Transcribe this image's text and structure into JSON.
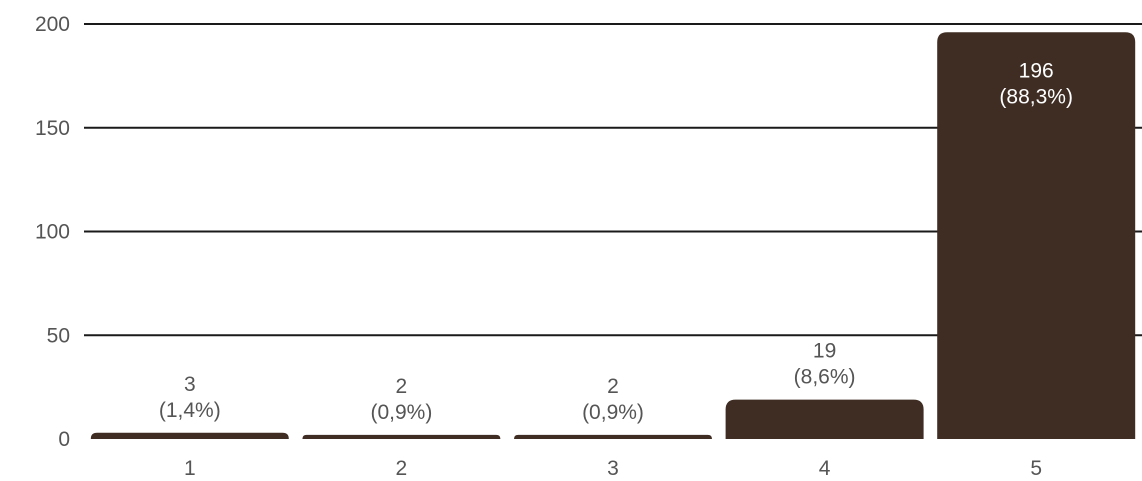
{
  "chart_data": {
    "type": "bar",
    "categories": [
      "1",
      "2",
      "3",
      "4",
      "5"
    ],
    "values": [
      3,
      2,
      2,
      19,
      196
    ],
    "data_labels": [
      [
        "3",
        "(1,4%)"
      ],
      [
        "2",
        "(0,9%)"
      ],
      [
        "2",
        "(0,9%)"
      ],
      [
        "19",
        "(8,6%)"
      ],
      [
        "196",
        "(88,3%)"
      ]
    ],
    "y_ticks": [
      "0",
      "50",
      "100",
      "150",
      "200"
    ],
    "y_tick_values": [
      0,
      50,
      100,
      150,
      200
    ],
    "ylim": [
      0,
      200
    ],
    "grid": true,
    "legend": "none",
    "title": "",
    "xlabel": "",
    "ylabel": "",
    "colors": {
      "bar": "#3f2d24",
      "grid": "#1a1a1a",
      "tick_text": "#555555",
      "label_outside": "#555555",
      "label_inside": "#ffffff"
    }
  }
}
